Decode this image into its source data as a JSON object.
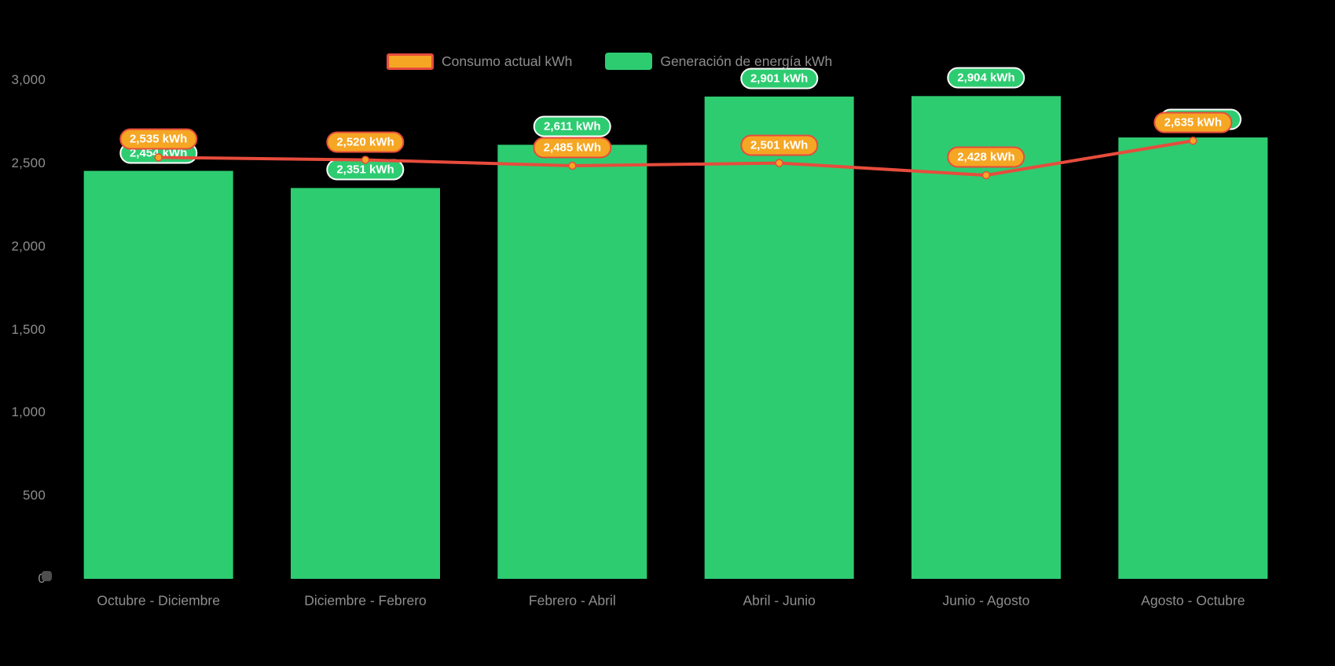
{
  "chart_data": {
    "type": "bar+line",
    "background": "#000000",
    "grid": false,
    "categories": [
      "Octubre - Diciembre",
      "Diciembre - Febrero",
      "Febrero - Abril",
      "Abril - Junio",
      "Junio - Agosto",
      "Agosto - Octubre"
    ],
    "series": [
      {
        "name": "Generación de energía kWh",
        "type": "bar",
        "color": "#2ecc71",
        "values": [
          2454,
          2351,
          2611,
          2901,
          2904,
          2655
        ],
        "labels": [
          "2,454 kWh",
          "2,351 kWh",
          "2,611 kWh",
          "2,901 kWh",
          "2,904 kWh",
          ""
        ],
        "note": "Last bar's value label is hidden behind the consumption label; its value is estimated from bar height."
      },
      {
        "name": "Consumo actual kWh",
        "type": "line",
        "color": "#e74c3c",
        "marker_color": "#f5a623",
        "values": [
          2535,
          2520,
          2485,
          2501,
          2428,
          2635
        ],
        "labels": [
          "2,535 kWh",
          "2,520 kWh",
          "2,485 kWh",
          "2,501 kWh",
          "2,428 kWh",
          "2,635 kWh"
        ]
      }
    ],
    "y_axis": {
      "min": 0,
      "max": 3000,
      "tick_step": 500,
      "tick_labels": [
        "0",
        "500",
        "1,000",
        "1,500",
        "2,000",
        "2,500",
        "3,000"
      ]
    },
    "x_axis": {
      "tick_labels": [
        "Octubre - Diciembre",
        "Diciembre - Febrero",
        "Febrero - Abril",
        "Abril - Junio",
        "Junio - Agosto",
        "Agosto - Octubre"
      ]
    },
    "legend": {
      "position": "top-center",
      "items": [
        {
          "label": "Consumo actual kWh",
          "swatch_fill": "#f5a623",
          "swatch_border": "#e74c3c"
        },
        {
          "label": "Generación de energía kWh",
          "swatch_fill": "#2ecc71",
          "swatch_border": null
        }
      ]
    }
  }
}
